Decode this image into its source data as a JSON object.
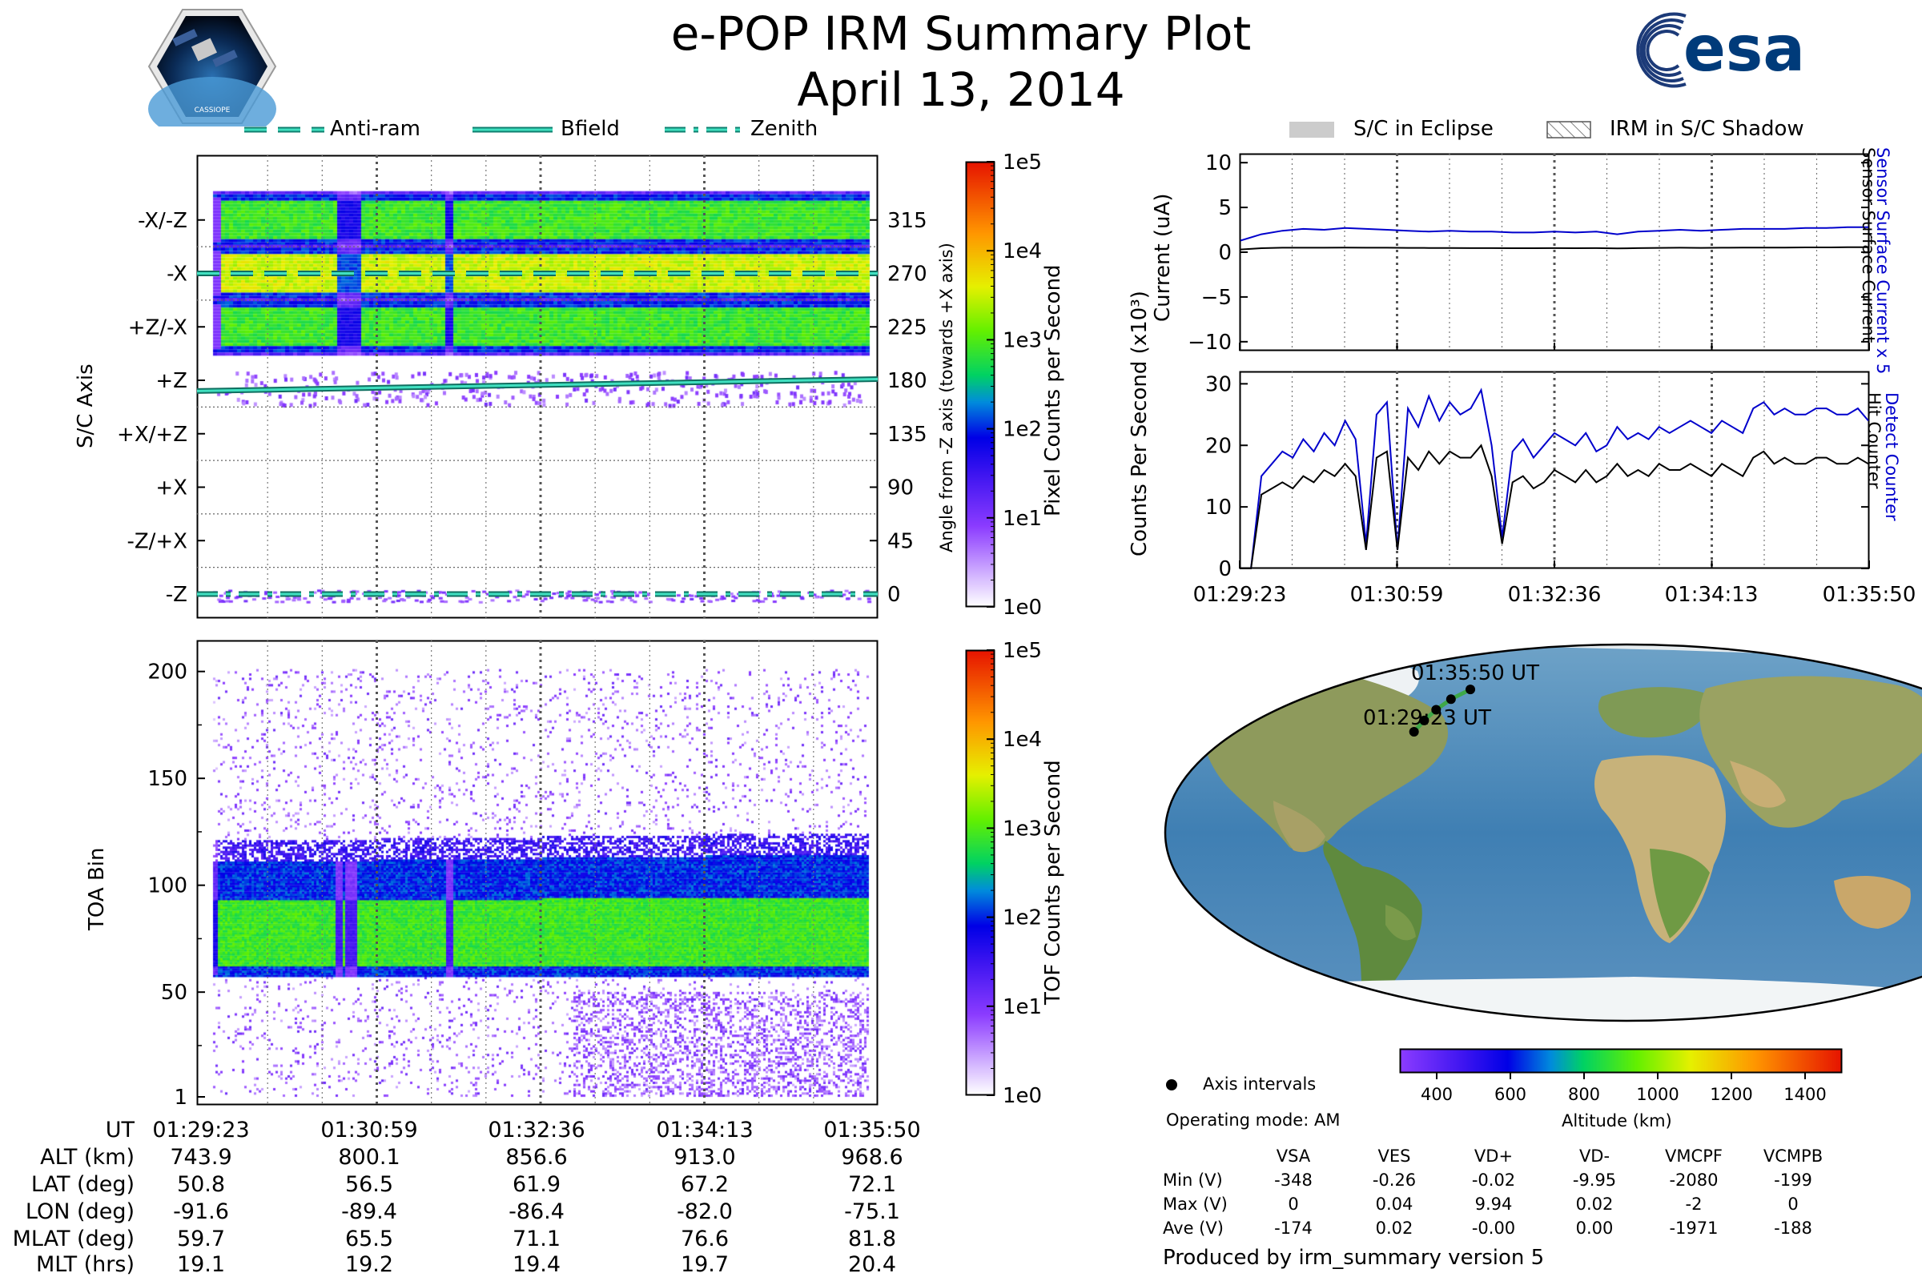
{
  "title": "e-POP IRM Summary Plot",
  "date": "April 13, 2014",
  "logos": {
    "left_text": "CASSIOPE",
    "right_text": "esa"
  },
  "legend_top_left": [
    {
      "label": "Anti-ram",
      "style": "dashed"
    },
    {
      "label": "Bfield",
      "style": "solid"
    },
    {
      "label": "Zenith",
      "style": "dashdot"
    }
  ],
  "legend_top_right": [
    {
      "label": "S/C in Eclipse",
      "style": "gray-fill"
    },
    {
      "label": "IRM in S/C Shadow",
      "style": "hatch"
    }
  ],
  "time_ticks": [
    "01:29:23",
    "01:30:59",
    "01:32:36",
    "01:34:13",
    "01:35:50"
  ],
  "chart_data": [
    {
      "id": "sc-axis-panel",
      "type": "heatmap",
      "ylabel": "S/C Axis",
      "ylabel_right": "Angle from -Z axis (towards +X axis)",
      "y_categories": [
        "-X/-Z",
        "-X",
        "+Z/-X",
        "+Z",
        "+X/+Z",
        "+X",
        "-Z/+X",
        "-Z"
      ],
      "y_right_ticks": [
        "315",
        "270",
        "225",
        "180",
        "135",
        "90",
        "45",
        "0"
      ],
      "ylim": [
        0,
        360
      ],
      "colorbar": {
        "label": "Pixel Counts per Second",
        "ticks": [
          "1e0",
          "1e1",
          "1e2",
          "1e3",
          "1e4",
          "1e5"
        ]
      },
      "lines": [
        {
          "name": "Anti-ram",
          "angle_start": 270,
          "angle_end": 270
        },
        {
          "name": "Bfield",
          "angle_start": 171,
          "angle_end": 181
        },
        {
          "name": "Zenith",
          "angle_start": 0,
          "angle_end": 0
        }
      ],
      "bands": [
        {
          "angle": 315,
          "level": "green"
        },
        {
          "angle": 270,
          "level": "yellow"
        },
        {
          "angle": 225,
          "level": "green"
        }
      ]
    },
    {
      "id": "toa-panel",
      "type": "heatmap",
      "ylabel": "TOA Bin",
      "y_ticks": [
        "1",
        "50",
        "100",
        "150",
        "200"
      ],
      "ylim": [
        1,
        210
      ],
      "colorbar": {
        "label": "TOF Counts per Second",
        "ticks": [
          "1e0",
          "1e1",
          "1e2",
          "1e3",
          "1e4",
          "1e5"
        ]
      },
      "band_bins": {
        "core_low": 62,
        "core_high": 92,
        "edge_low": 57,
        "edge_high": 110
      }
    },
    {
      "id": "current-panel",
      "type": "line",
      "ylabel": "Current (uA)",
      "y_ticks": [
        "10",
        "5",
        "0",
        "−5",
        "−10"
      ],
      "ylim": [
        -11,
        11
      ],
      "right_labels": [
        "Sensor Surface Current x 5",
        "Sensor Surface Current"
      ],
      "series": [
        {
          "name": "Sensor Surface Current x 5",
          "color": "#0000cc",
          "values": [
            1.3,
            2.0,
            2.4,
            2.6,
            2.5,
            2.7,
            2.6,
            2.5,
            2.4,
            2.3,
            2.4,
            2.3,
            2.3,
            2.2,
            2.2,
            2.3,
            2.2,
            2.3,
            2.0,
            2.3,
            2.4,
            2.5,
            2.4,
            2.5,
            2.6,
            2.6,
            2.6,
            2.7,
            2.7,
            2.8,
            2.8
          ]
        },
        {
          "name": "Sensor Surface Current",
          "color": "#000000",
          "values": [
            0.3,
            0.45,
            0.5,
            0.5,
            0.5,
            0.52,
            0.5,
            0.5,
            0.48,
            0.47,
            0.47,
            0.46,
            0.46,
            0.45,
            0.45,
            0.46,
            0.45,
            0.46,
            0.42,
            0.46,
            0.48,
            0.5,
            0.48,
            0.5,
            0.52,
            0.52,
            0.52,
            0.54,
            0.54,
            0.55,
            0.56
          ]
        }
      ]
    },
    {
      "id": "counts-panel",
      "type": "line",
      "ylabel": "Counts Per Second (x10³)",
      "y_ticks": [
        "30",
        "20",
        "10",
        "0"
      ],
      "ylim": [
        0,
        32
      ],
      "right_labels": [
        "Detect Counter",
        "Hit Counter"
      ],
      "series": [
        {
          "name": "Detect Counter",
          "color": "#0000cc",
          "values": [
            0,
            0,
            15,
            17,
            19,
            18,
            21,
            19,
            22,
            20,
            24,
            21,
            4,
            25,
            27,
            3,
            26,
            23,
            28,
            24,
            27,
            25,
            26,
            29,
            20,
            5,
            19,
            21,
            18,
            20,
            22,
            21,
            20,
            22,
            19,
            20,
            23,
            21,
            22,
            21,
            23,
            22,
            23,
            24,
            23,
            22,
            24,
            23,
            22,
            26,
            27,
            25,
            26,
            25,
            25,
            26,
            26,
            25,
            25,
            26,
            24
          ]
        },
        {
          "name": "Hit Counter",
          "color": "#000000",
          "values": [
            0,
            0,
            12,
            13,
            14,
            13,
            15,
            14,
            16,
            15,
            17,
            15,
            3,
            18,
            19,
            3,
            18,
            16,
            19,
            17,
            19,
            18,
            18,
            20,
            15,
            4,
            14,
            15,
            13,
            14,
            16,
            15,
            14,
            16,
            14,
            15,
            17,
            15,
            16,
            15,
            17,
            16,
            16,
            17,
            16,
            15,
            17,
            16,
            15,
            18,
            19,
            17,
            18,
            17,
            17,
            18,
            18,
            17,
            17,
            18,
            17
          ]
        }
      ]
    },
    {
      "id": "map-panel",
      "type": "scatter",
      "points": [
        [
          -91.6,
          50.8
        ],
        [
          -89.4,
          56.5
        ],
        [
          -86.4,
          61.9
        ],
        [
          -82.0,
          67.2
        ],
        [
          -75.1,
          72.1
        ]
      ],
      "start_label": "01:29:23 UT",
      "end_label": "01:35:50 UT",
      "colorbar": {
        "label": "Altitude (km)",
        "ticks": [
          "400",
          "600",
          "800",
          "1000",
          "1200",
          "1400"
        ],
        "range": [
          300,
          1500
        ]
      }
    }
  ],
  "ephemeris": {
    "header": "UT",
    "rows": [
      {
        "label": "ALT (km)",
        "values": [
          "743.9",
          "800.1",
          "856.6",
          "913.0",
          "968.6"
        ]
      },
      {
        "label": "LAT (deg)",
        "values": [
          "50.8",
          "56.5",
          "61.9",
          "67.2",
          "72.1"
        ]
      },
      {
        "label": "LON (deg)",
        "values": [
          "-91.6",
          "-89.4",
          "-86.4",
          "-82.0",
          "-75.1"
        ]
      },
      {
        "label": "MLAT (deg)",
        "values": [
          "59.7",
          "65.5",
          "71.1",
          "76.6",
          "81.8"
        ]
      },
      {
        "label": "MLT (hrs)",
        "values": [
          "19.1",
          "19.2",
          "19.4",
          "19.7",
          "20.4"
        ]
      }
    ]
  },
  "info": {
    "axis_intervals": "Axis intervals",
    "operating_mode": "Operating mode: AM",
    "produced_by": "Produced by irm_summary version 5"
  },
  "voltage_table": {
    "headers": [
      "VSA",
      "VES",
      "VD+",
      "VD-",
      "VMCPF",
      "VCMPB"
    ],
    "rows": [
      {
        "label": "Min (V)",
        "values": [
          "-348",
          "-0.26",
          "-0.02",
          "-9.95",
          "-2080",
          "-199"
        ]
      },
      {
        "label": "Max (V)",
        "values": [
          "0",
          "0.04",
          "9.94",
          "0.02",
          "-2",
          "0"
        ]
      },
      {
        "label": "Ave (V)",
        "values": [
          "-174",
          "0.02",
          "-0.00",
          "0.00",
          "-1971",
          "-188"
        ]
      }
    ]
  }
}
